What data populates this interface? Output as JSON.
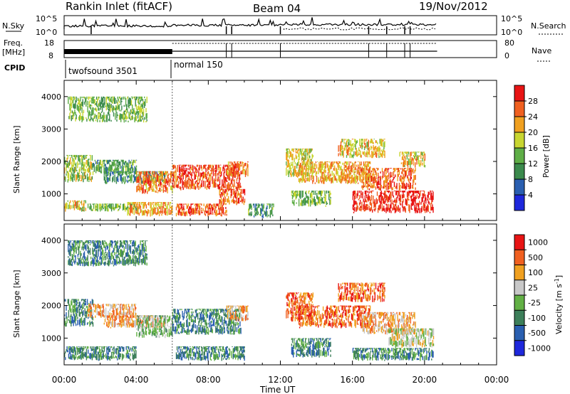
{
  "header": {
    "station": "Rankin Inlet (fitACF)",
    "beam": "Beam 04",
    "date": "19/Nov/2012"
  },
  "top_panels": {
    "sky_label": "N.Sky",
    "search_label": "N.Search",
    "count_ticks": [
      "10^5",
      "10^0"
    ],
    "freq_label": "Freq.",
    "freq_unit": "[MHz]",
    "freq_ticks": [
      "18",
      "8"
    ],
    "nave_ticks": [
      "80",
      "0"
    ],
    "nave_label": "Nave",
    "cpid_label": "CPID",
    "modes": [
      {
        "name": "twofsound 3501",
        "start_hour": 0,
        "end_hour": 6
      },
      {
        "name": "normal 150",
        "start_hour": 6,
        "end_hour": 20.7
      }
    ]
  },
  "chart_data": [
    {
      "type": "heatmap",
      "name": "power",
      "xlabel": "",
      "ylabel": "Slant Range [km]",
      "xlim": [
        0,
        24
      ],
      "ylim": [
        180,
        4500
      ],
      "yticks": [
        1000,
        2000,
        3000,
        4000
      ],
      "colorbar": {
        "label": "Power [dB]",
        "ticks": [
          4,
          8,
          12,
          16,
          20,
          24,
          28
        ],
        "range": [
          0,
          32
        ],
        "colors": [
          "#1e28dc",
          "#2a5fb0",
          "#3b8a4d",
          "#5fae47",
          "#c8d631",
          "#f0a020",
          "#f06020",
          "#e81414"
        ]
      },
      "echo_regions": [
        {
          "t0": 0.0,
          "t1": 1.6,
          "r0": 1350,
          "r1": 2200,
          "level": 16
        },
        {
          "t0": 0.0,
          "t1": 1.2,
          "r0": 450,
          "r1": 800,
          "level": 20
        },
        {
          "t0": 1.3,
          "t1": 4.0,
          "r0": 450,
          "r1": 700,
          "level": 14
        },
        {
          "t0": 1.6,
          "t1": 4.0,
          "r0": 1600,
          "r1": 2050,
          "level": 12
        },
        {
          "t0": 2.2,
          "t1": 5.6,
          "r0": 1300,
          "r1": 1700,
          "level": 10
        },
        {
          "t0": 0.2,
          "t1": 4.6,
          "r0": 3200,
          "r1": 4000,
          "level": 14
        },
        {
          "t0": 4.0,
          "t1": 6.0,
          "r0": 1000,
          "r1": 1700,
          "level": 24
        },
        {
          "t0": 3.5,
          "t1": 6.0,
          "r0": 300,
          "r1": 750,
          "level": 22
        },
        {
          "t0": 6.0,
          "t1": 9.8,
          "r0": 1100,
          "r1": 1900,
          "level": 28
        },
        {
          "t0": 6.2,
          "t1": 9.0,
          "r0": 300,
          "r1": 700,
          "level": 27
        },
        {
          "t0": 8.6,
          "t1": 10.0,
          "r0": 650,
          "r1": 1150,
          "level": 26
        },
        {
          "t0": 9.0,
          "t1": 10.2,
          "r0": 1500,
          "r1": 2000,
          "level": 24
        },
        {
          "t0": 10.2,
          "t1": 11.6,
          "r0": 250,
          "r1": 700,
          "level": 12
        },
        {
          "t0": 12.3,
          "t1": 13.8,
          "r0": 1500,
          "r1": 2400,
          "level": 18
        },
        {
          "t0": 12.6,
          "t1": 14.8,
          "r0": 600,
          "r1": 1100,
          "level": 14
        },
        {
          "t0": 13.0,
          "t1": 17.0,
          "r0": 1300,
          "r1": 2000,
          "level": 22
        },
        {
          "t0": 15.2,
          "t1": 17.8,
          "r0": 2100,
          "r1": 2700,
          "level": 20
        },
        {
          "t0": 16.5,
          "t1": 19.5,
          "r0": 1100,
          "r1": 1800,
          "level": 26
        },
        {
          "t0": 16.0,
          "t1": 20.5,
          "r0": 400,
          "r1": 1100,
          "level": 30
        },
        {
          "t0": 18.6,
          "t1": 20.0,
          "r0": 1800,
          "r1": 2300,
          "level": 20
        }
      ]
    },
    {
      "type": "heatmap",
      "name": "velocity",
      "xlabel": "Time UT",
      "ylabel": "Slant Range [km]",
      "xlim": [
        0,
        24
      ],
      "ylim": [
        180,
        4500
      ],
      "xticks": [
        "00:00",
        "04:00",
        "08:00",
        "12:00",
        "16:00",
        "20:00",
        "00:00"
      ],
      "yticks": [
        1000,
        2000,
        3000,
        4000
      ],
      "colorbar": {
        "label": "Velocity [m s^-1]",
        "ticks": [
          "1000",
          "500",
          "100",
          "25",
          "-25",
          "-100",
          "-500",
          "-1000"
        ],
        "colors": [
          "#1e28dc",
          "#2a5fb0",
          "#3d7f5a",
          "#62b045",
          "#c8c8c8",
          "#f0a020",
          "#f06020",
          "#e81414"
        ]
      },
      "echo_regions": [
        {
          "t0": 0.0,
          "t1": 1.6,
          "r0": 1350,
          "r1": 2200,
          "level": 2
        },
        {
          "t0": 0.0,
          "t1": 4.0,
          "r0": 300,
          "r1": 750,
          "level": 2
        },
        {
          "t0": 1.3,
          "t1": 4.0,
          "r0": 1600,
          "r1": 2050,
          "level": 5
        },
        {
          "t0": 2.2,
          "t1": 5.6,
          "r0": 1300,
          "r1": 1700,
          "level": 5
        },
        {
          "t0": 0.2,
          "t1": 4.6,
          "r0": 3200,
          "r1": 4000,
          "level": 2
        },
        {
          "t0": 4.0,
          "t1": 6.0,
          "r0": 1000,
          "r1": 1700,
          "level": 3
        },
        {
          "t0": 6.0,
          "t1": 9.8,
          "r0": 1100,
          "r1": 1900,
          "level": 2
        },
        {
          "t0": 6.2,
          "t1": 10.0,
          "r0": 300,
          "r1": 750,
          "level": 2
        },
        {
          "t0": 9.0,
          "t1": 10.2,
          "r0": 1500,
          "r1": 2000,
          "level": 5
        },
        {
          "t0": 12.3,
          "t1": 13.8,
          "r0": 1500,
          "r1": 2400,
          "level": 6
        },
        {
          "t0": 12.6,
          "t1": 14.8,
          "r0": 400,
          "r1": 1000,
          "level": 2
        },
        {
          "t0": 13.0,
          "t1": 17.0,
          "r0": 1300,
          "r1": 2000,
          "level": 6
        },
        {
          "t0": 15.2,
          "t1": 17.8,
          "r0": 2100,
          "r1": 2700,
          "level": 6
        },
        {
          "t0": 16.5,
          "t1": 19.5,
          "r0": 1100,
          "r1": 1800,
          "level": 5
        },
        {
          "t0": 18.0,
          "t1": 20.5,
          "r0": 700,
          "r1": 1300,
          "level": 4
        },
        {
          "t0": 16.0,
          "t1": 20.5,
          "r0": 300,
          "r1": 700,
          "level": 2
        }
      ]
    }
  ]
}
